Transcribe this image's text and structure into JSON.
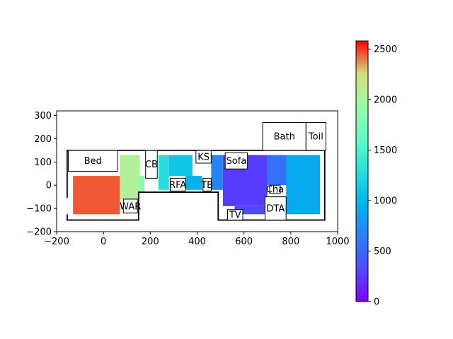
{
  "chart_data": {
    "type": "heatmap",
    "title": "",
    "xlabel": "",
    "ylabel": "",
    "xlim": [
      -200,
      1000
    ],
    "ylim": [
      -200,
      320
    ],
    "xticks": [
      -200,
      0,
      200,
      400,
      600,
      800,
      1000
    ],
    "yticks": [
      -200,
      -100,
      0,
      100,
      200,
      300
    ],
    "grid": false,
    "colormap": "rainbow",
    "colorbar": {
      "min": 0,
      "max": 2580,
      "ticks": [
        0,
        500,
        1000,
        1500,
        2000,
        2500
      ]
    },
    "walls": [
      [
        [
          -155,
          -55
        ],
        [
          -155,
          150
        ],
        [
          945,
          150
        ],
        [
          945,
          -150
        ],
        [
          490,
          -150
        ],
        [
          490,
          -30
        ],
        [
          150,
          -30
        ],
        [
          150,
          -150
        ],
        [
          -155,
          -150
        ],
        [
          -155,
          -125
        ]
      ]
    ],
    "rooms": [
      {
        "label": "Bath",
        "x": [
          680,
          865
        ],
        "y": [
          150,
          270
        ]
      },
      {
        "label": "Toil",
        "x": [
          865,
          950
        ],
        "y": [
          150,
          270
        ]
      }
    ],
    "furniture": [
      {
        "label": "Bed",
        "x": [
          -150,
          60
        ],
        "y": [
          60,
          150
        ]
      },
      {
        "label": "CB",
        "x": [
          180,
          230
        ],
        "y": [
          30,
          150
        ]
      },
      {
        "label": "KS",
        "x": [
          395,
          460
        ],
        "y": [
          95,
          150
        ]
      },
      {
        "label": "Sofa",
        "x": [
          520,
          615
        ],
        "y": [
          70,
          140
        ]
      },
      {
        "label": "RFA",
        "x": [
          285,
          350
        ],
        "y": [
          -25,
          30
        ]
      },
      {
        "label": "TB",
        "x": [
          425,
          460
        ],
        "y": [
          -25,
          30
        ]
      },
      {
        "label": "Cha",
        "x": [
          710,
          755
        ],
        "y": [
          -35,
          0
        ]
      },
      {
        "label": "DTA",
        "x": [
          690,
          780
        ],
        "y": [
          -150,
          -50
        ]
      },
      {
        "label": "WAR",
        "x": [
          85,
          145
        ],
        "y": [
          -120,
          -60
        ]
      },
      {
        "label": "TV",
        "x": [
          530,
          595
        ],
        "y": [
          -150,
          -105
        ]
      }
    ],
    "field": {
      "regions": [
        {
          "x": [
            -130,
            70
          ],
          "y": [
            -125,
            40
          ],
          "value": 2450
        },
        {
          "x": [
            70,
            155
          ],
          "y": [
            -60,
            130
          ],
          "value": 2050
        },
        {
          "x": [
            155,
            175
          ],
          "y": [
            -30,
            40
          ],
          "value": 1800
        },
        {
          "x": [
            235,
            280
          ],
          "y": [
            -20,
            130
          ],
          "value": 1280
        },
        {
          "x": [
            280,
            380
          ],
          "y": [
            40,
            130
          ],
          "value": 1100
        },
        {
          "x": [
            350,
            420
          ],
          "y": [
            -20,
            40
          ],
          "value": 950
        },
        {
          "x": [
            460,
            510
          ],
          "y": [
            -20,
            130
          ],
          "value": 680
        },
        {
          "x": [
            510,
            700
          ],
          "y": [
            -90,
            130
          ],
          "value": 260
        },
        {
          "x": [
            560,
            700
          ],
          "y": [
            -125,
            -90
          ],
          "value": 330
        },
        {
          "x": [
            700,
            790
          ],
          "y": [
            0,
            130
          ],
          "value": 560
        },
        {
          "x": [
            780,
            925
          ],
          "y": [
            -125,
            130
          ],
          "value": 900
        }
      ]
    }
  }
}
